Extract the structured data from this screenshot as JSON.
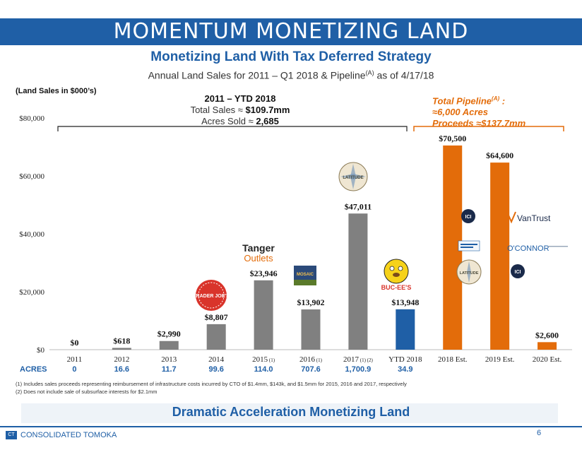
{
  "header": {
    "title": "MOMENTUM MONETIZING LAND",
    "subtitle": "Monetizing Land With Tax Deferred Strategy",
    "subtitle2_prefix": "Annual Land Sales for 2011 – Q1 2018 & Pipeline",
    "subtitle2_sup": "(A)",
    "subtitle2_suffix": " as of 4/17/18"
  },
  "units_label": "(Land Sales in $000’s)",
  "summary_block": {
    "line1": "2011 – YTD 2018",
    "line2_prefix": "Total Sales ≈ ",
    "line2_value": "$109.7mm",
    "line3_prefix": "Acres Sold ≈ ",
    "line3_value": "2,685"
  },
  "pipeline_block": {
    "line1": "Total Pipeline",
    "line1_sup": "(A)",
    "line1_suffix": " :",
    "line2": "≈6,000 Acres",
    "line3": "Proceeds ≈$137.7mm"
  },
  "acres": {
    "label": "ACRES",
    "values": [
      "0",
      "16.6",
      "11.7",
      "99.6",
      "114.0",
      "707.6",
      "1,700.9",
      "34.9"
    ]
  },
  "footnotes": [
    "(1) Includes sales proceeds representing reimbursement of infrastructure costs incurred by CTO of $1.4mm, $143k, and $1.5mm for 2015, 2016 and 2017, respectively",
    "(2) Does not include sale of subsurface interests for $2.1mm"
  ],
  "bottom_banner": "Dramatic Acceleration Monetizing Land",
  "footer": {
    "brand": "CONSOLIDATED TOMOKA",
    "brand_mark": "CT",
    "page": "6"
  },
  "logos": {
    "trader_joes": "TRADER JOE'S",
    "tanger_line1": "Tanger",
    "tanger_line2": "Outlets",
    "mosaic": "MOSAIC",
    "latitude": "LATITUDE",
    "bucees": "BUC-EE'S",
    "jci": "ICI",
    "vantrust": "VanTrust",
    "oconnor": "O'CONNOR"
  },
  "chart_data": {
    "type": "bar",
    "categories": [
      "2011",
      "2012",
      "2013",
      "2014",
      "2015",
      "2016",
      "2017",
      "YTD 2018",
      "2018 Est.",
      "2019 Est.",
      "2020 Est."
    ],
    "category_suffix": [
      "",
      "",
      "",
      "",
      " (1)",
      " (1)",
      " (1) (2)",
      "",
      "",
      "",
      ""
    ],
    "values": [
      0,
      618,
      2990,
      8807,
      23946,
      13902,
      47011,
      13948,
      70500,
      64600,
      2600
    ],
    "value_labels": [
      "$0",
      "$618",
      "$2,990",
      "$8,807",
      "$23,946",
      "$13,902",
      "$47,011",
      "$13,948",
      "$70,500",
      "$64,600",
      "$2,600"
    ],
    "bar_groups": [
      "historical",
      "historical",
      "historical",
      "historical",
      "historical",
      "historical",
      "historical",
      "ytd",
      "pipeline",
      "pipeline",
      "pipeline"
    ],
    "colors": {
      "historical": "#808080",
      "ytd": "#1f5fa6",
      "pipeline": "#e36c0a"
    },
    "y_ticks": [
      0,
      20000,
      40000,
      60000,
      80000
    ],
    "y_tick_labels": [
      "$0",
      "$20,000",
      "$40,000",
      "$60,000",
      "$80,000"
    ],
    "ylim": [
      0,
      80000
    ],
    "grid": false
  }
}
